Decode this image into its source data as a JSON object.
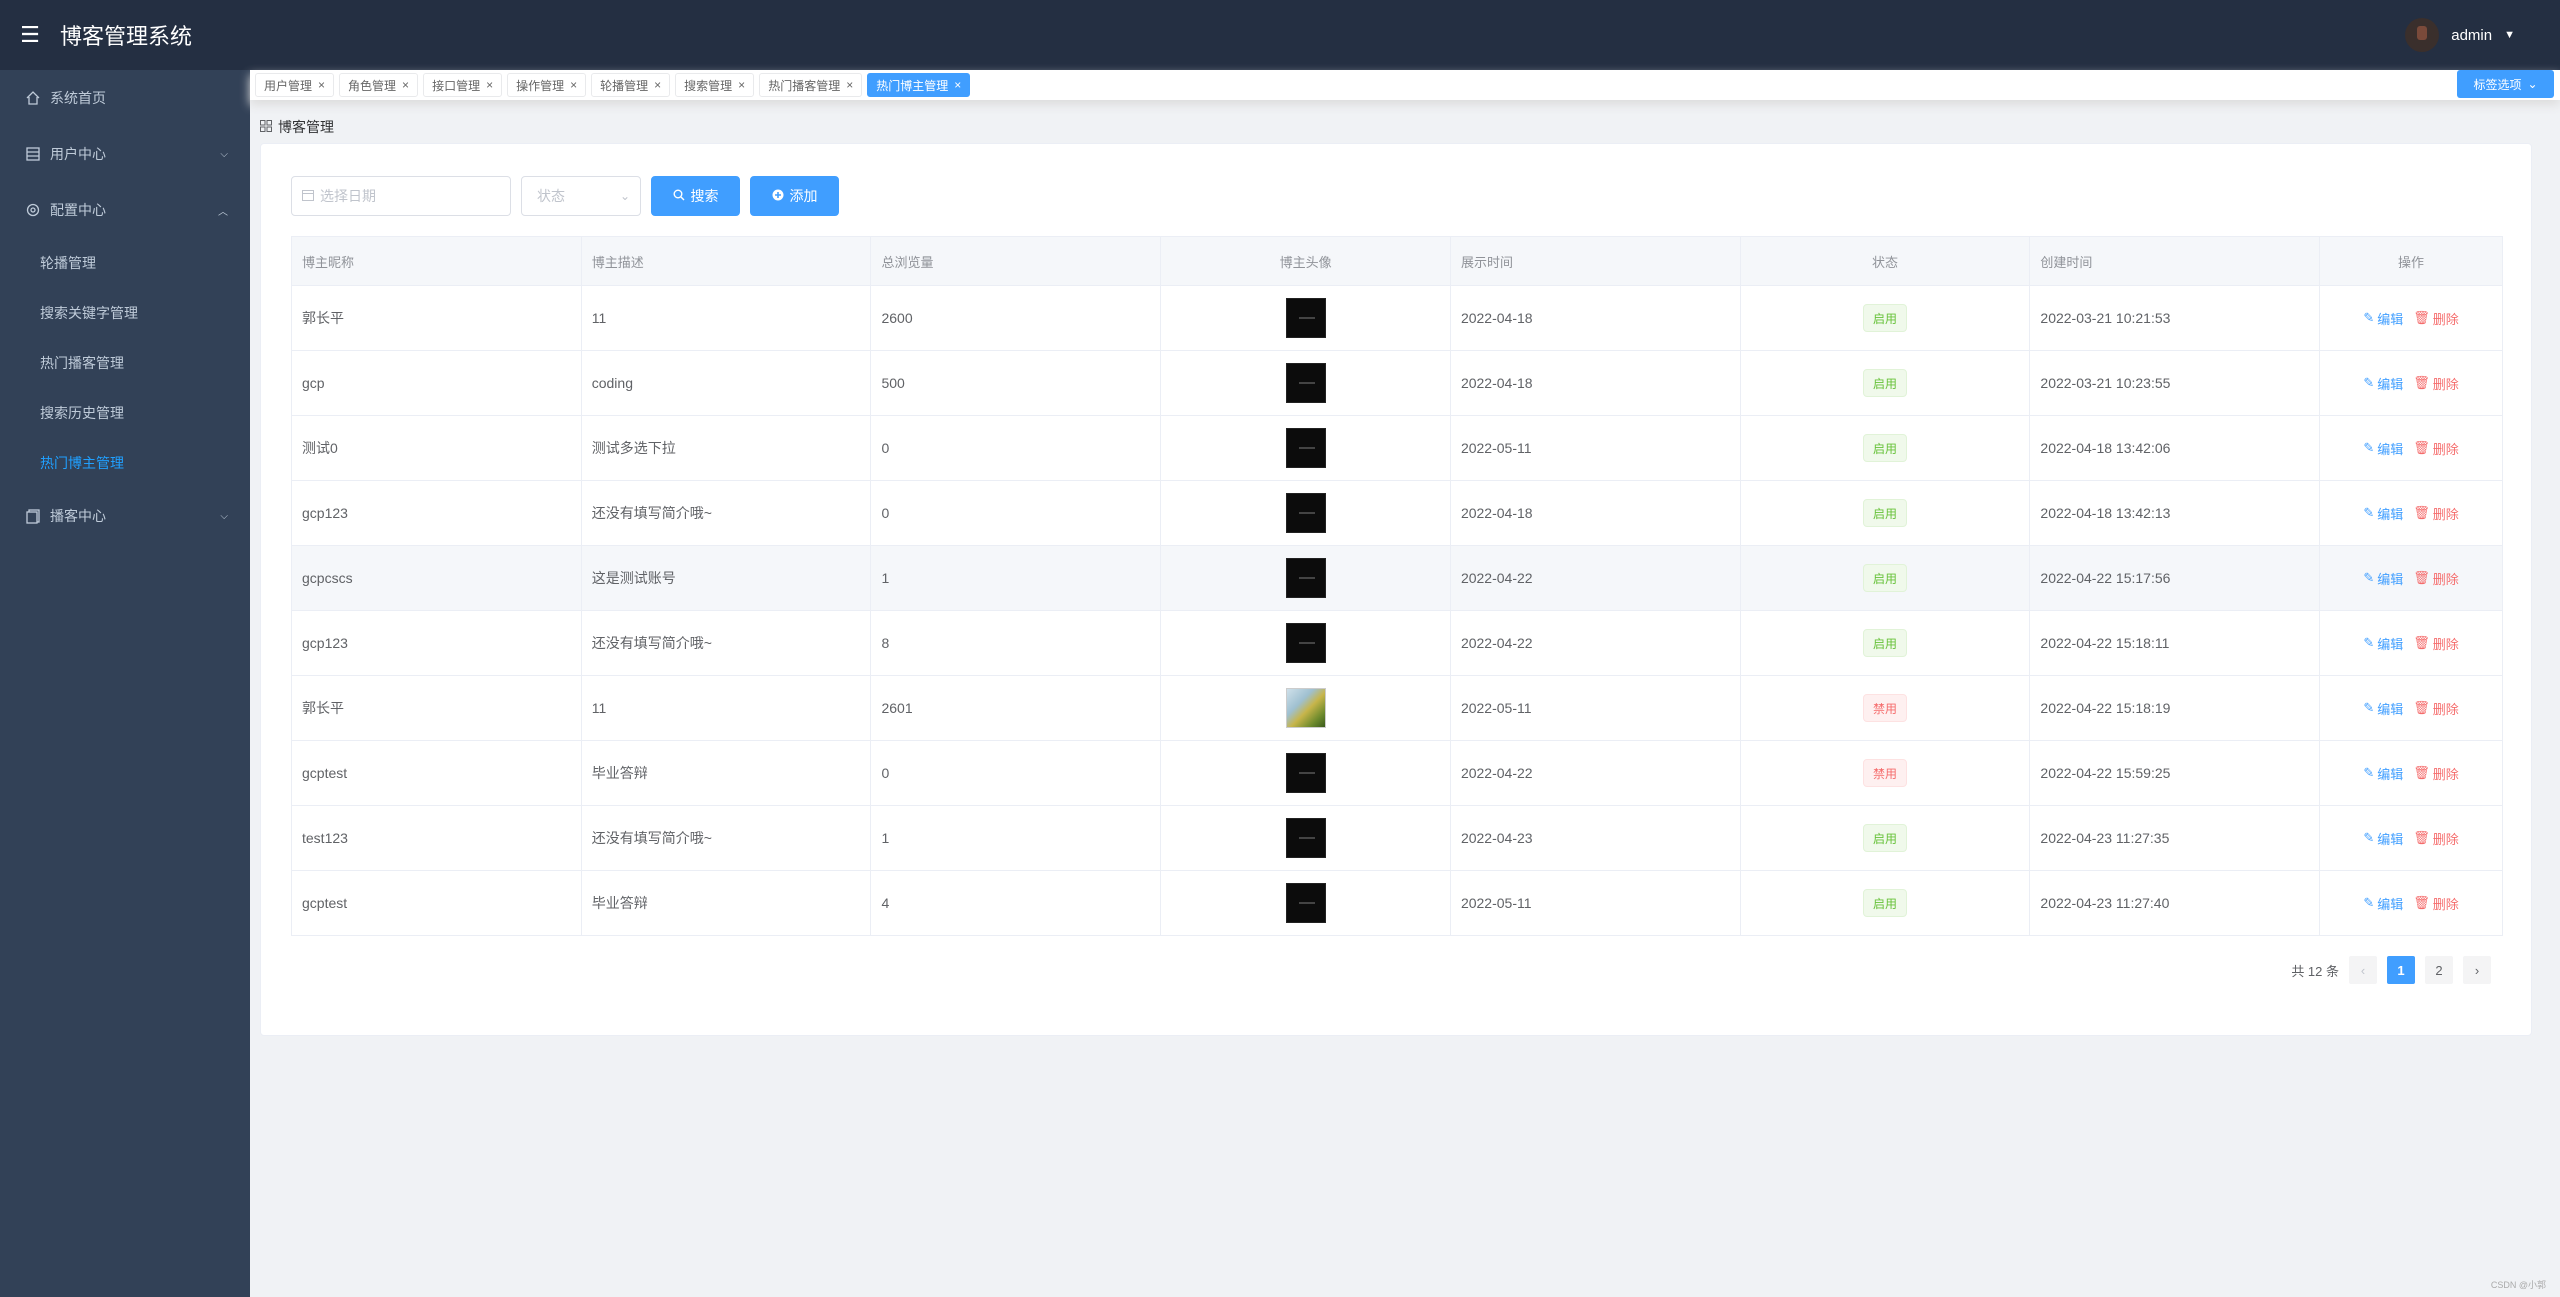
{
  "header": {
    "menu_icon": "hamburger-icon",
    "title": "博客管理系统",
    "username": "admin"
  },
  "sidebar": {
    "items": [
      {
        "label": "系统首页",
        "icon": "home-icon"
      },
      {
        "label": "用户中心",
        "icon": "list-icon"
      },
      {
        "label": "配置中心",
        "icon": "gear-icon"
      }
    ],
    "config_children": [
      "轮播管理",
      "搜索关键字管理",
      "热门播客管理",
      "搜索历史管理",
      "热门博主管理"
    ],
    "blog_center": {
      "label": "播客中心",
      "icon": "copy-icon"
    }
  },
  "tags": {
    "items": [
      "用户管理",
      "角色管理",
      "接口管理",
      "操作管理",
      "轮播管理",
      "搜索管理",
      "热门播客管理",
      "热门博主管理"
    ],
    "active_index": 7,
    "options_label": "标签选项"
  },
  "breadcrumb": {
    "label": "博客管理"
  },
  "toolbar": {
    "date_placeholder": "选择日期",
    "status_placeholder": "状态",
    "search_label": "搜索",
    "add_label": "添加"
  },
  "table": {
    "headers": [
      "博主昵称",
      "博主描述",
      "总浏览量",
      "博主头像",
      "展示时间",
      "状态",
      "创建时间",
      "操作"
    ],
    "rows": [
      {
        "name": "郭长平",
        "desc": "11",
        "views": "2600",
        "show_time": "2022-04-18",
        "status": "启用",
        "created": "2022-03-21 10:21:53"
      },
      {
        "name": "gcp",
        "desc": "coding",
        "views": "500",
        "show_time": "2022-04-18",
        "status": "启用",
        "created": "2022-03-21 10:23:55"
      },
      {
        "name": "测试0",
        "desc": "测试多选下拉",
        "views": "0",
        "show_time": "2022-05-11",
        "status": "启用",
        "created": "2022-04-18 13:42:06"
      },
      {
        "name": "gcp123",
        "desc": "还没有填写简介哦~",
        "views": "0",
        "show_time": "2022-04-18",
        "status": "启用",
        "created": "2022-04-18 13:42:13"
      },
      {
        "name": "gcpcscs",
        "desc": "这是测试账号",
        "views": "1",
        "show_time": "2022-04-22",
        "status": "启用",
        "created": "2022-04-22 15:17:56"
      },
      {
        "name": "gcp123",
        "desc": "还没有填写简介哦~",
        "views": "8",
        "show_time": "2022-04-22",
        "status": "启用",
        "created": "2022-04-22 15:18:11"
      },
      {
        "name": "郭长平",
        "desc": "11",
        "views": "2601",
        "show_time": "2022-05-11",
        "status": "禁用",
        "created": "2022-04-22 15:18:19"
      },
      {
        "name": "gcptest",
        "desc": "毕业答辩",
        "views": "0",
        "show_time": "2022-04-22",
        "status": "禁用",
        "created": "2022-04-22 15:59:25"
      },
      {
        "name": "test123",
        "desc": "还没有填写简介哦~",
        "views": "1",
        "show_time": "2022-04-23",
        "status": "启用",
        "created": "2022-04-23 11:27:35"
      },
      {
        "name": "gcptest",
        "desc": "毕业答辩",
        "views": "4",
        "show_time": "2022-05-11",
        "status": "启用",
        "created": "2022-04-23 11:27:40"
      }
    ],
    "edit_label": "编辑",
    "delete_label": "删除"
  },
  "pagination": {
    "total_label": "共 12 条",
    "pages": [
      "1",
      "2"
    ],
    "current": "1"
  },
  "colors": {
    "primary": "#409eff",
    "header_bg": "#242f42",
    "sidebar_bg": "#324157",
    "success": "#67c23a",
    "danger": "#f56c6c"
  },
  "footer": {
    "note": "CSDN @小郭"
  }
}
